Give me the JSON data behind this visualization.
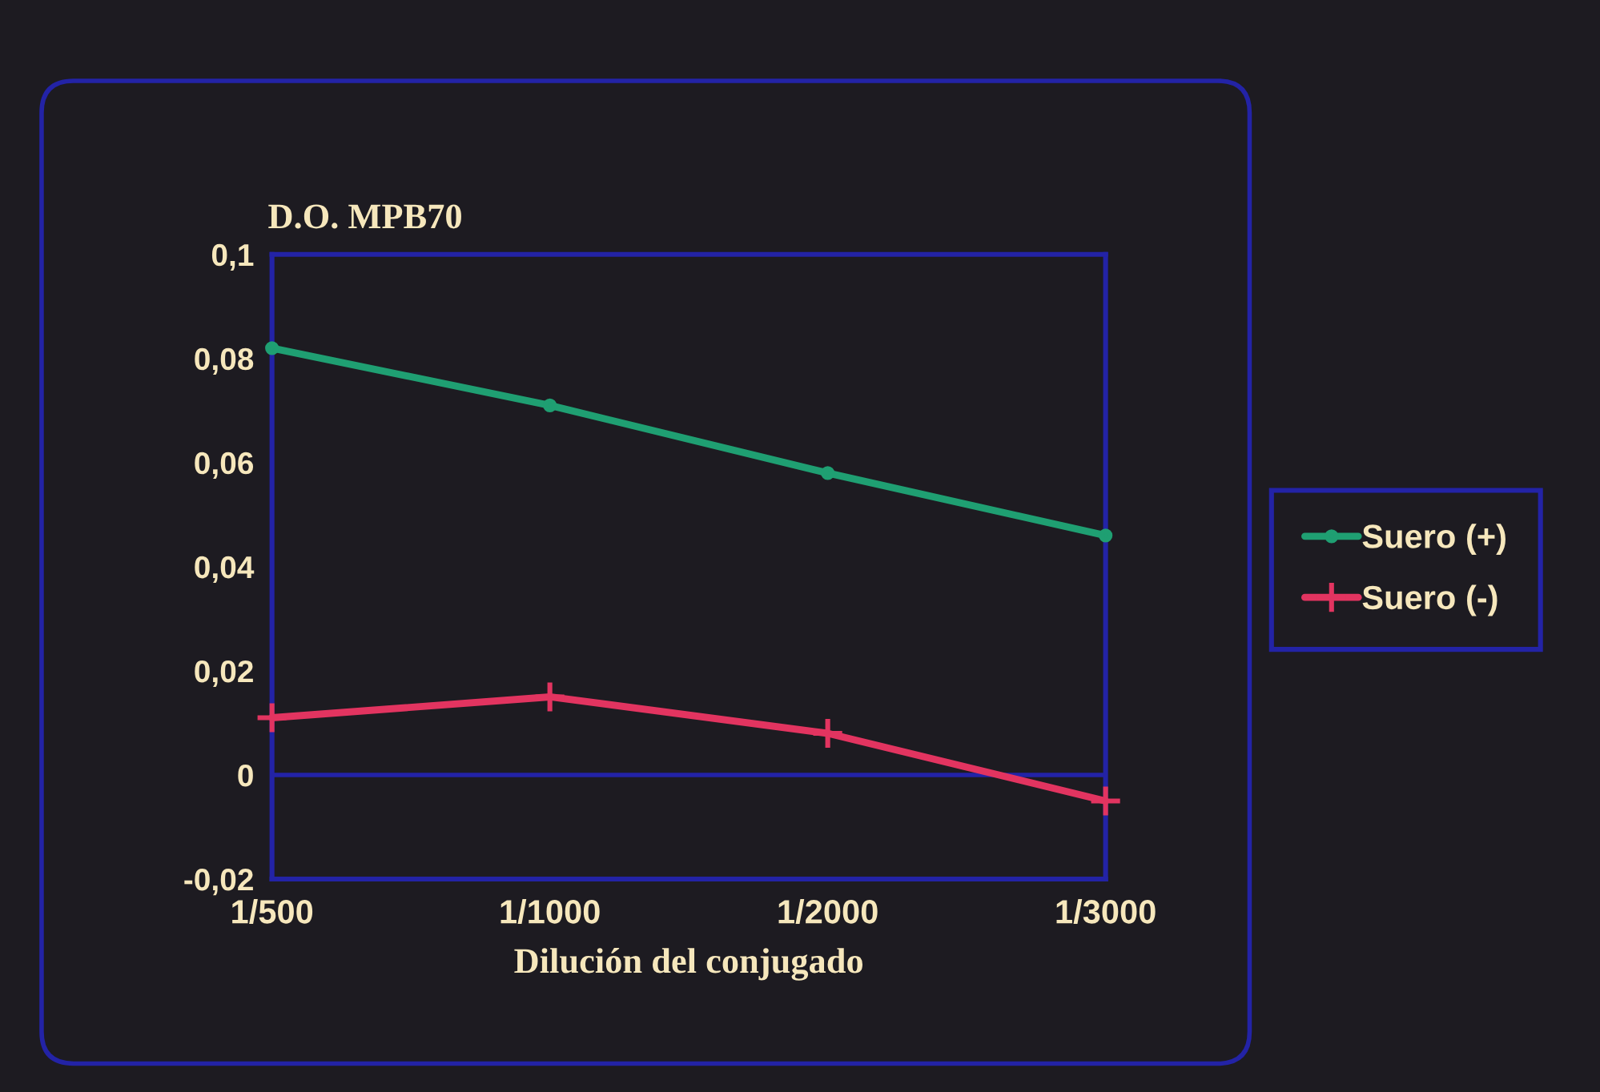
{
  "chart_data": {
    "type": "line",
    "ylabel": "D.O. MPB70",
    "xlabel": "Dilución del conjugado",
    "categories": [
      "1/500",
      "1/1000",
      "1/2000",
      "1/3000"
    ],
    "series": [
      {
        "name": "Suero (+)",
        "color": "#1f9f72",
        "marker": "circle",
        "values": [
          0.082,
          0.071,
          0.058,
          0.046
        ]
      },
      {
        "name": "Suero (-)",
        "color": "#e23460",
        "marker": "cross",
        "values": [
          0.011,
          0.015,
          0.008,
          -0.005
        ]
      }
    ],
    "ylim": [
      -0.02,
      0.1
    ],
    "yticks": [
      {
        "value": -0.02,
        "label": "-0,02"
      },
      0,
      {
        "value": 0.02,
        "label": "0,02"
      },
      {
        "value": 0.04,
        "label": "0,04"
      },
      {
        "value": 0.06,
        "label": "0,06"
      },
      {
        "value": 0.08,
        "label": "0,08"
      },
      {
        "value": 0.1,
        "label": "0,1"
      }
    ],
    "ref_lines": [
      {
        "axis": "y",
        "value": 0,
        "color": "#2323a6"
      }
    ],
    "legend": "right"
  }
}
